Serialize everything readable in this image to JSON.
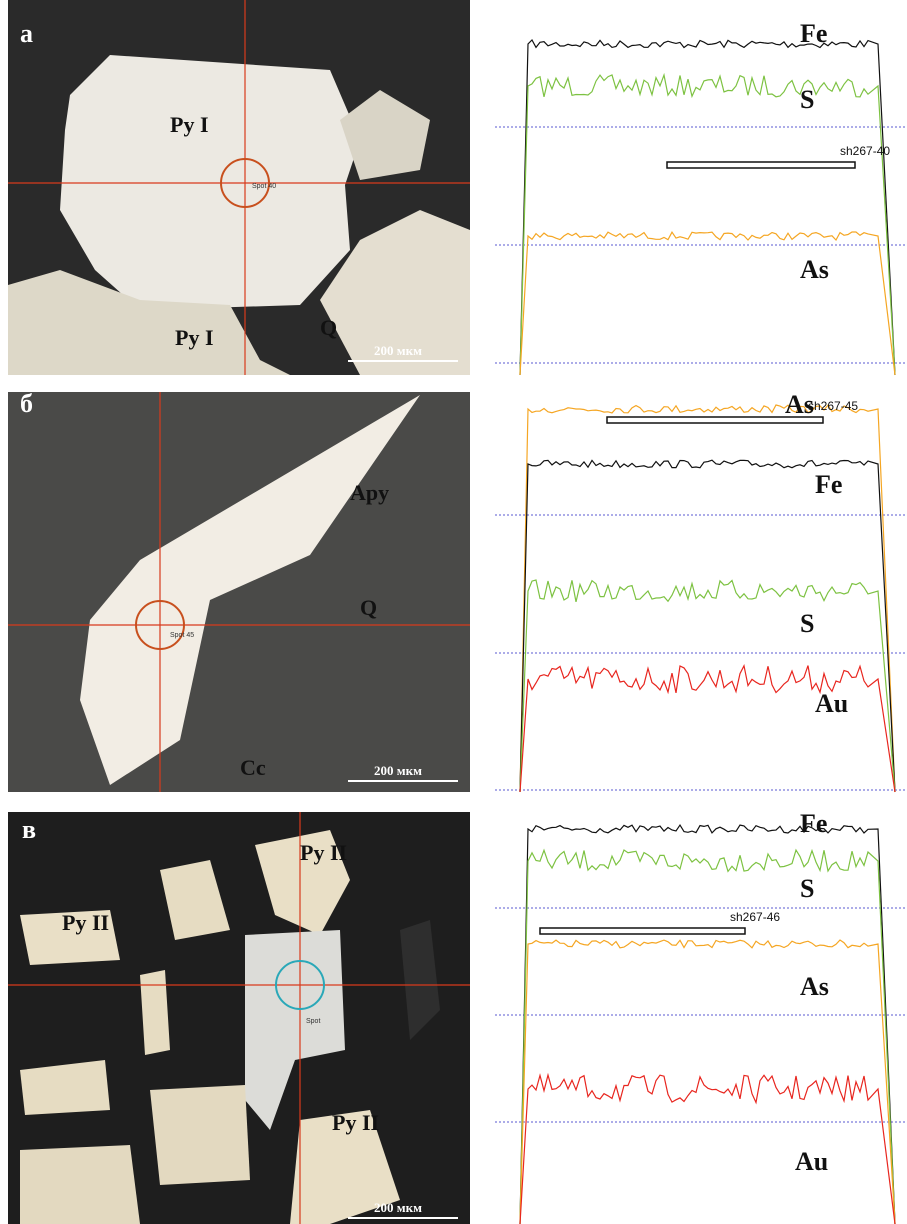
{
  "panels": [
    {
      "letter": "а",
      "labels": [
        "Py I",
        "Py I",
        "Q"
      ],
      "spot": "Spot 40",
      "scale": "200 мкм",
      "profile": {
        "sample": "sh267-40",
        "elements": [
          "Fe",
          "S",
          "As"
        ]
      }
    },
    {
      "letter": "б",
      "labels": [
        "Apy",
        "Q",
        "Cc"
      ],
      "spot": "Spot 45",
      "scale": "200 мкм",
      "profile": {
        "sample": "sh267-45",
        "elements": [
          "As",
          "Fe",
          "S",
          "Au"
        ]
      }
    },
    {
      "letter": "в",
      "labels": [
        "Py II",
        "Py II",
        "Py II"
      ],
      "spot": "Spot",
      "scale": "200 мкм",
      "profile": {
        "sample": "sh267-46",
        "elements": [
          "Fe",
          "S",
          "As",
          "Au"
        ]
      }
    }
  ]
}
